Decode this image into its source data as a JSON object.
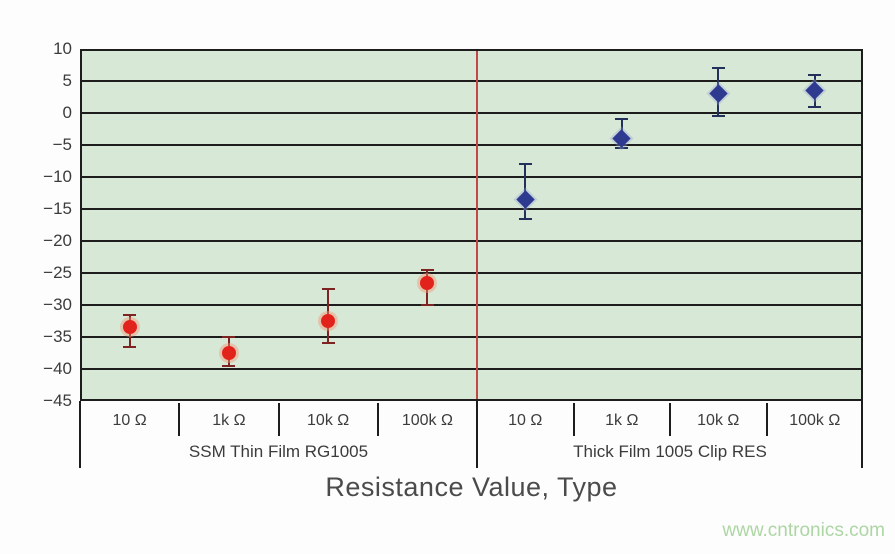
{
  "watermark": "www.cntronics.com",
  "colors": {
    "plot_background": "#d7e8d7",
    "gridline": "#1d1d1d",
    "axis_text": "#3c3c3c",
    "title_text": "#4b4b4b",
    "watermark_text": "#add6a4",
    "red_series": "#e2231c",
    "blue_series": "#2d3a90"
  },
  "chart_data": {
    "type": "scatter",
    "title": "",
    "xlabel": "Resistance Value, Type",
    "ylabel": "",
    "ylim": [
      -45,
      10
    ],
    "grid": true,
    "legend_position": "none",
    "divider_color": "#c04848",
    "yticks": [
      {
        "value": 10,
        "label": "10"
      },
      {
        "value": 5,
        "label": "5"
      },
      {
        "value": 0,
        "label": "0"
      },
      {
        "value": -5,
        "label": "−5"
      },
      {
        "value": -10,
        "label": "−10"
      },
      {
        "value": -15,
        "label": "−15"
      },
      {
        "value": -20,
        "label": "−20"
      },
      {
        "value": -25,
        "label": "−25"
      },
      {
        "value": -30,
        "label": "−30"
      },
      {
        "value": -35,
        "label": "−35"
      },
      {
        "value": -40,
        "label": "−40"
      },
      {
        "value": -45,
        "label": "−45"
      }
    ],
    "groups": [
      {
        "label": "SSM Thin Film RG1005",
        "marker": "circle",
        "marker_color": "#e2231c",
        "halo_color": "rgba(246,150,118,0.45)",
        "error_color": "#7e2222",
        "categories": [
          "10 Ω",
          "1k Ω",
          "10k Ω",
          "100k Ω"
        ],
        "points": [
          {
            "x": "10 Ω",
            "value": -33.5,
            "err_high": -31.5,
            "err_low": -36.5
          },
          {
            "x": "1k Ω",
            "value": -37.5,
            "err_high": -35,
            "err_low": -39.5
          },
          {
            "x": "10k Ω",
            "value": -32.5,
            "err_high": -27.5,
            "err_low": -36
          },
          {
            "x": "100k Ω",
            "value": -26.5,
            "err_high": -24.5,
            "err_low": -30
          }
        ]
      },
      {
        "label": "Thick Film 1005 Clip RES",
        "marker": "diamond",
        "marker_color": "#2d3a90",
        "halo_color": "rgba(150,160,215,0.35)",
        "error_color": "#233059",
        "categories": [
          "10 Ω",
          "1k Ω",
          "10k Ω",
          "100k Ω"
        ],
        "points": [
          {
            "x": "10 Ω",
            "value": -13.5,
            "err_high": -8,
            "err_low": -16.5
          },
          {
            "x": "1k Ω",
            "value": -4,
            "err_high": -1,
            "err_low": -5.5
          },
          {
            "x": "10k Ω",
            "value": 3,
            "err_high": 7,
            "err_low": -0.5
          },
          {
            "x": "100k Ω",
            "value": 3.5,
            "err_high": 6,
            "err_low": 1
          }
        ]
      }
    ]
  }
}
